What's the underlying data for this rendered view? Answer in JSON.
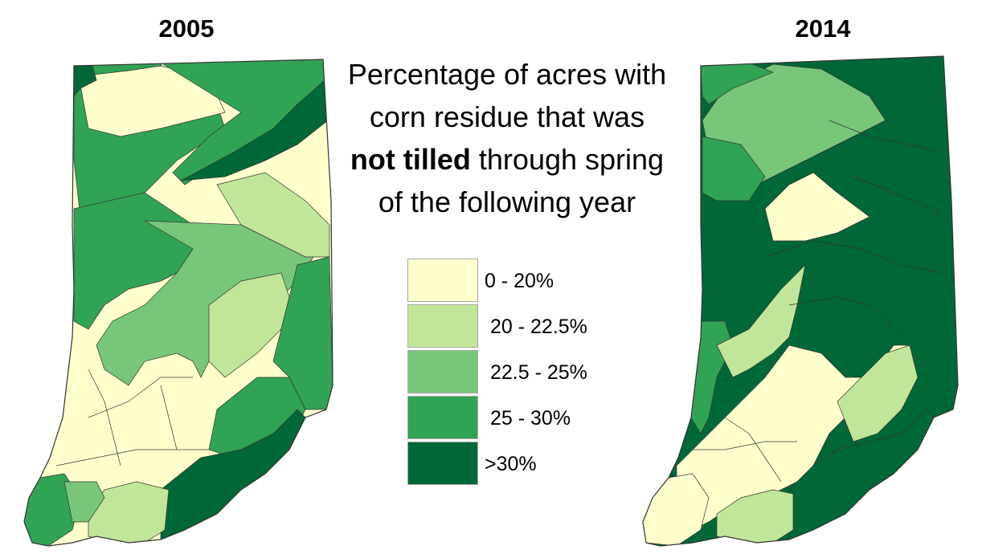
{
  "maps": [
    {
      "year": "2005"
    },
    {
      "year": "2014"
    }
  ],
  "heading": {
    "line1": "Percentage of acres with",
    "line2": "corn residue that was",
    "line3_bold": "not tilled",
    "line3_rest": " through spring",
    "line4": "of the following year"
  },
  "legend": [
    {
      "label": "0 - 20%",
      "color": "#ffffcc"
    },
    {
      "label": "20 - 22.5%",
      "color": "#c2e699"
    },
    {
      "label": "22.5 - 25%",
      "color": "#78c679"
    },
    {
      "label": "25 - 30%",
      "color": "#31a354"
    },
    {
      "label": ">30%",
      "color": "#006837"
    }
  ]
}
